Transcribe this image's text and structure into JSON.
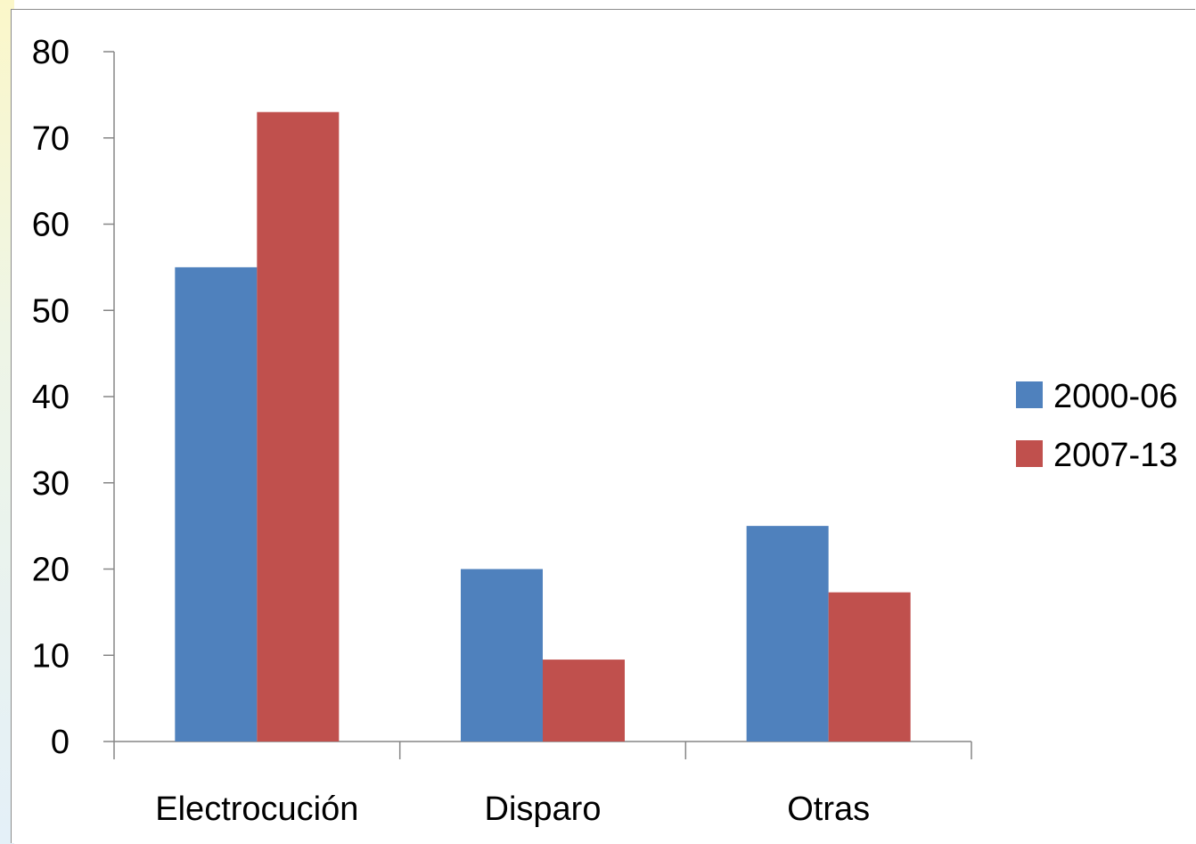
{
  "chart_data": {
    "type": "bar",
    "categories": [
      "Electrocución",
      "Disparo",
      "Otras"
    ],
    "series": [
      {
        "name": "2000-06",
        "values": [
          55,
          20,
          25
        ],
        "color": "#4f81bd"
      },
      {
        "name": "2007-13",
        "values": [
          73,
          9.5,
          17.3
        ],
        "color": "#c0504d"
      }
    ],
    "ylim": [
      0,
      80
    ],
    "yticks": [
      "0",
      "10",
      "20",
      "30",
      "40",
      "50",
      "60",
      "70",
      "80"
    ],
    "title": "",
    "xlabel": "",
    "ylabel": "",
    "grid": false,
    "legend_position": "right"
  }
}
